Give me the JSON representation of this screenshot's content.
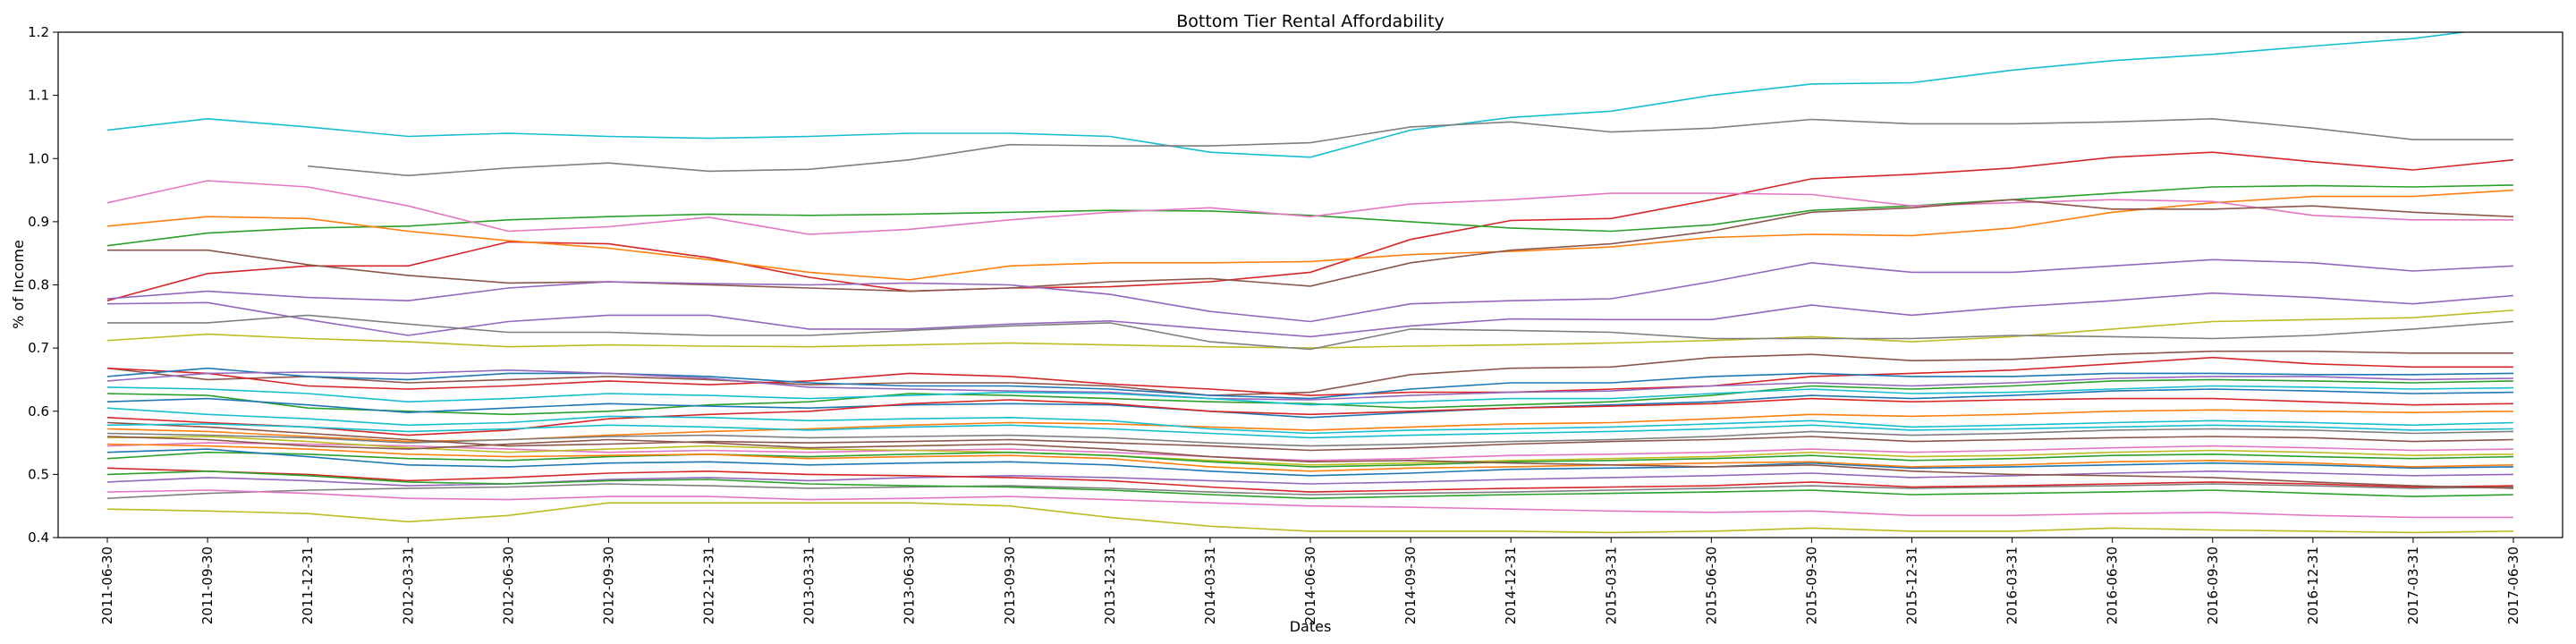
{
  "chart_data": {
    "type": "line",
    "title": "Bottom Tier Rental Affordability",
    "xlabel": "Dates",
    "ylabel": "% of Income",
    "ylim": [
      0.4,
      1.2
    ],
    "yticks": [
      "0.4",
      "0.5",
      "0.6",
      "0.7",
      "0.8",
      "0.9",
      "1.0",
      "1.1",
      "1.2"
    ],
    "grid": false,
    "legend": "none",
    "x": [
      "2011-06-30",
      "2011-09-30",
      "2011-12-31",
      "2012-03-31",
      "2012-06-30",
      "2012-09-30",
      "2012-12-31",
      "2013-03-31",
      "2013-06-30",
      "2013-09-30",
      "2013-12-31",
      "2014-03-31",
      "2014-06-30",
      "2014-09-30",
      "2014-12-31",
      "2015-03-31",
      "2015-06-30",
      "2015-09-30",
      "2015-12-31",
      "2016-03-31",
      "2016-06-30",
      "2016-09-30",
      "2016-12-31",
      "2017-03-31",
      "2017-06-30"
    ],
    "series": [
      {
        "color": "#17becf",
        "values": [
          1.045,
          1.063,
          1.05,
          1.035,
          1.04,
          1.035,
          1.032,
          1.035,
          1.04,
          1.04,
          1.035,
          1.01,
          1.002,
          1.045,
          1.065,
          1.075,
          1.1,
          1.118,
          1.12,
          1.14,
          1.155,
          1.165,
          1.178,
          1.19,
          1.21
        ]
      },
      {
        "color": "#7f7f7f",
        "values": [
          null,
          null,
          0.988,
          0.973,
          0.985,
          0.993,
          0.98,
          0.983,
          0.998,
          1.022,
          1.02,
          1.02,
          1.025,
          1.05,
          1.058,
          1.042,
          1.048,
          1.062,
          1.055,
          1.055,
          1.058,
          1.063,
          1.048,
          1.03,
          1.03
        ]
      },
      {
        "color": "#d62728",
        "values": [
          0.775,
          0.818,
          0.83,
          0.83,
          0.868,
          0.865,
          0.843,
          0.812,
          0.79,
          0.795,
          0.797,
          0.805,
          0.82,
          0.872,
          0.902,
          0.905,
          0.935,
          0.968,
          0.975,
          0.985,
          1.002,
          1.01,
          0.995,
          0.982,
          0.998
        ]
      },
      {
        "color": "#2ca02c",
        "values": [
          0.862,
          0.882,
          0.89,
          0.893,
          0.903,
          0.908,
          0.912,
          0.91,
          0.912,
          0.915,
          0.918,
          0.917,
          0.91,
          0.9,
          0.89,
          0.885,
          0.895,
          0.918,
          0.925,
          0.935,
          0.945,
          0.955,
          0.957,
          0.955,
          0.958
        ]
      },
      {
        "color": "#ff7f0e",
        "values": [
          0.893,
          0.908,
          0.905,
          0.885,
          0.87,
          0.858,
          0.84,
          0.82,
          0.808,
          0.83,
          0.835,
          0.835,
          0.837,
          0.848,
          0.853,
          0.86,
          0.875,
          0.88,
          0.878,
          0.89,
          0.915,
          0.93,
          0.94,
          0.94,
          0.95
        ]
      },
      {
        "color": "#e377c2",
        "values": [
          0.93,
          0.965,
          0.955,
          0.925,
          0.885,
          0.892,
          0.907,
          0.88,
          0.888,
          0.903,
          0.915,
          0.922,
          0.908,
          0.928,
          0.935,
          0.945,
          0.945,
          0.943,
          0.925,
          0.93,
          0.935,
          0.932,
          0.91,
          0.903,
          0.903
        ]
      },
      {
        "color": "#8c564b",
        "values": [
          0.855,
          0.855,
          0.832,
          0.815,
          0.803,
          0.805,
          0.8,
          0.795,
          0.79,
          0.795,
          0.805,
          0.81,
          0.798,
          0.835,
          0.855,
          0.865,
          0.885,
          0.915,
          0.922,
          0.935,
          0.92,
          0.92,
          0.925,
          0.915,
          0.908
        ]
      },
      {
        "color": "#9467bd",
        "values": [
          0.778,
          0.79,
          0.78,
          0.775,
          0.795,
          0.805,
          0.802,
          0.8,
          0.803,
          0.8,
          0.785,
          0.758,
          0.742,
          0.77,
          0.775,
          0.778,
          0.805,
          0.835,
          0.82,
          0.82,
          0.83,
          0.84,
          0.835,
          0.822,
          0.83
        ]
      },
      {
        "color": "#9467bd",
        "values": [
          0.77,
          0.772,
          0.745,
          0.72,
          0.742,
          0.752,
          0.752,
          0.73,
          0.73,
          0.738,
          0.743,
          0.73,
          0.718,
          0.735,
          0.746,
          0.745,
          0.745,
          0.768,
          0.752,
          0.765,
          0.775,
          0.787,
          0.78,
          0.77,
          0.783
        ]
      },
      {
        "color": "#bcbd22",
        "values": [
          0.712,
          0.722,
          0.715,
          0.71,
          0.702,
          0.705,
          0.703,
          0.702,
          0.705,
          0.708,
          0.705,
          0.702,
          0.7,
          0.703,
          0.705,
          0.708,
          0.712,
          0.718,
          0.71,
          0.718,
          0.73,
          0.742,
          0.745,
          0.748,
          0.76
        ]
      },
      {
        "color": "#7f7f7f",
        "values": [
          0.74,
          0.74,
          0.752,
          0.738,
          0.725,
          0.725,
          0.72,
          0.72,
          0.728,
          0.735,
          0.74,
          0.71,
          0.698,
          0.73,
          0.728,
          0.725,
          0.715,
          0.715,
          0.715,
          0.72,
          0.718,
          0.715,
          0.72,
          0.73,
          0.742
        ]
      },
      {
        "color": "#8c564b",
        "values": [
          0.668,
          0.65,
          0.655,
          0.645,
          0.65,
          0.655,
          0.65,
          0.642,
          0.645,
          0.645,
          0.64,
          0.625,
          0.63,
          0.658,
          0.668,
          0.67,
          0.685,
          0.69,
          0.68,
          0.682,
          0.69,
          0.695,
          0.695,
          0.692,
          0.692
        ]
      },
      {
        "color": "#d62728",
        "values": [
          0.668,
          0.66,
          0.64,
          0.635,
          0.64,
          0.648,
          0.642,
          0.648,
          0.66,
          0.655,
          0.643,
          0.635,
          0.625,
          0.63,
          0.63,
          0.635,
          0.64,
          0.655,
          0.66,
          0.665,
          0.675,
          0.685,
          0.675,
          0.67,
          0.67
        ]
      },
      {
        "color": "#1f77b4",
        "values": [
          0.655,
          0.668,
          0.655,
          0.65,
          0.66,
          0.66,
          0.655,
          0.645,
          0.64,
          0.64,
          0.635,
          0.625,
          0.62,
          0.635,
          0.645,
          0.645,
          0.655,
          0.66,
          0.655,
          0.655,
          0.66,
          0.66,
          0.658,
          0.658,
          0.66
        ]
      },
      {
        "color": "#9467bd",
        "values": [
          0.648,
          0.66,
          0.662,
          0.66,
          0.665,
          0.66,
          0.652,
          0.638,
          0.635,
          0.632,
          0.63,
          0.62,
          0.618,
          0.625,
          0.63,
          0.632,
          0.64,
          0.645,
          0.64,
          0.645,
          0.652,
          0.655,
          0.655,
          0.65,
          0.652
        ]
      },
      {
        "color": "#2ca02c",
        "values": [
          0.628,
          0.625,
          0.605,
          0.6,
          0.595,
          0.6,
          0.61,
          0.615,
          0.628,
          0.625,
          0.62,
          0.615,
          0.612,
          0.605,
          0.61,
          0.615,
          0.625,
          0.64,
          0.635,
          0.64,
          0.648,
          0.65,
          0.648,
          0.645,
          0.648
        ]
      },
      {
        "color": "#17becf",
        "values": [
          0.638,
          0.635,
          0.628,
          0.615,
          0.62,
          0.628,
          0.625,
          0.62,
          0.625,
          0.63,
          0.628,
          0.62,
          0.61,
          0.615,
          0.62,
          0.62,
          0.628,
          0.635,
          0.628,
          0.63,
          0.635,
          0.64,
          0.638,
          0.635,
          0.637
        ]
      },
      {
        "color": "#1f77b4",
        "values": [
          0.615,
          0.62,
          0.61,
          0.598,
          0.605,
          0.612,
          0.608,
          0.605,
          0.61,
          0.612,
          0.61,
          0.6,
          0.59,
          0.598,
          0.605,
          0.61,
          0.615,
          0.625,
          0.62,
          0.625,
          0.632,
          0.635,
          0.632,
          0.628,
          0.63
        ]
      },
      {
        "color": "#d62728",
        "values": [
          0.59,
          0.582,
          0.575,
          0.562,
          0.57,
          0.588,
          0.595,
          0.6,
          0.612,
          0.618,
          0.612,
          0.6,
          0.595,
          0.6,
          0.605,
          0.608,
          0.612,
          0.62,
          0.615,
          0.618,
          0.62,
          0.62,
          0.615,
          0.61,
          0.612
        ]
      },
      {
        "color": "#ff7f0e",
        "values": [
          0.572,
          0.568,
          0.56,
          0.552,
          0.555,
          0.562,
          0.568,
          0.572,
          0.578,
          0.582,
          0.58,
          0.575,
          0.57,
          0.575,
          0.58,
          0.582,
          0.588,
          0.595,
          0.592,
          0.595,
          0.6,
          0.602,
          0.6,
          0.598,
          0.6
        ]
      },
      {
        "color": "#17becf",
        "values": [
          0.605,
          0.595,
          0.588,
          0.578,
          0.582,
          0.592,
          0.59,
          0.585,
          0.588,
          0.59,
          0.585,
          0.572,
          0.565,
          0.57,
          0.572,
          0.575,
          0.58,
          0.585,
          0.575,
          0.578,
          0.582,
          0.585,
          0.582,
          0.578,
          0.582
        ]
      },
      {
        "color": "#7f7f7f",
        "values": [
          0.565,
          0.562,
          0.558,
          0.55,
          0.555,
          0.56,
          0.562,
          0.558,
          0.56,
          0.562,
          0.558,
          0.55,
          0.545,
          0.548,
          0.552,
          0.555,
          0.56,
          0.568,
          0.562,
          0.565,
          0.57,
          0.572,
          0.57,
          0.565,
          0.568
        ]
      },
      {
        "color": "#8c564b",
        "values": [
          0.582,
          0.575,
          0.565,
          0.555,
          0.545,
          0.548,
          0.552,
          0.55,
          0.552,
          0.555,
          0.55,
          0.545,
          0.538,
          0.542,
          0.548,
          0.552,
          0.555,
          0.56,
          0.552,
          0.555,
          0.558,
          0.56,
          0.558,
          0.552,
          0.555
        ]
      },
      {
        "color": "#e377c2",
        "values": [
          0.545,
          0.55,
          0.548,
          0.545,
          0.54,
          0.535,
          0.538,
          0.535,
          0.538,
          0.54,
          0.535,
          0.528,
          0.522,
          0.525,
          0.53,
          0.532,
          0.535,
          0.54,
          0.535,
          0.538,
          0.542,
          0.545,
          0.542,
          0.538,
          0.54
        ]
      },
      {
        "color": "#bcbd22",
        "values": [
          0.558,
          0.56,
          0.552,
          0.542,
          0.535,
          0.54,
          0.545,
          0.54,
          0.538,
          0.535,
          0.53,
          0.522,
          0.515,
          0.518,
          0.522,
          0.525,
          0.528,
          0.535,
          0.528,
          0.53,
          0.535,
          0.538,
          0.535,
          0.53,
          0.532
        ]
      },
      {
        "color": "#2ca02c",
        "values": [
          0.525,
          0.535,
          0.532,
          0.525,
          0.522,
          0.528,
          0.532,
          0.528,
          0.532,
          0.535,
          0.53,
          0.52,
          0.512,
          0.515,
          0.52,
          0.522,
          0.525,
          0.53,
          0.522,
          0.525,
          0.53,
          0.532,
          0.528,
          0.525,
          0.528
        ]
      },
      {
        "color": "#1f77b4",
        "values": [
          0.535,
          0.54,
          0.528,
          0.515,
          0.512,
          0.518,
          0.52,
          0.515,
          0.518,
          0.52,
          0.515,
          0.505,
          0.498,
          0.502,
          0.508,
          0.51,
          0.512,
          0.518,
          0.51,
          0.512,
          0.515,
          0.518,
          0.515,
          0.51,
          0.512
        ]
      },
      {
        "color": "#ff7f0e",
        "values": [
          0.548,
          0.545,
          0.54,
          0.532,
          0.528,
          0.53,
          0.532,
          0.525,
          0.528,
          0.53,
          0.525,
          0.512,
          0.505,
          0.51,
          0.512,
          0.515,
          0.518,
          0.52,
          0.512,
          0.515,
          0.52,
          0.522,
          0.518,
          0.512,
          0.515
        ]
      },
      {
        "color": "#9467bd",
        "values": [
          0.488,
          0.495,
          0.49,
          0.482,
          0.485,
          0.492,
          0.495,
          0.49,
          0.495,
          0.498,
          0.495,
          0.49,
          0.485,
          0.488,
          0.492,
          0.495,
          0.498,
          0.502,
          0.495,
          0.498,
          0.502,
          0.505,
          0.502,
          0.498,
          0.5
        ]
      },
      {
        "color": "#7f7f7f",
        "values": [
          0.462,
          0.47,
          0.475,
          0.478,
          0.48,
          0.485,
          0.482,
          0.478,
          0.48,
          0.482,
          0.478,
          0.472,
          0.468,
          0.47,
          0.472,
          0.475,
          0.478,
          0.482,
          0.478,
          0.48,
          0.482,
          0.485,
          0.482,
          0.478,
          0.48
        ]
      },
      {
        "color": "#d62728",
        "values": [
          0.51,
          0.505,
          0.5,
          0.49,
          0.495,
          0.502,
          0.505,
          0.5,
          0.498,
          0.495,
          0.49,
          0.48,
          0.472,
          0.475,
          0.478,
          0.48,
          0.482,
          0.488,
          0.48,
          0.482,
          0.485,
          0.488,
          0.485,
          0.48,
          0.482
        ]
      },
      {
        "color": "#2ca02c",
        "values": [
          0.5,
          0.505,
          0.498,
          0.488,
          0.485,
          0.49,
          0.492,
          0.485,
          0.482,
          0.48,
          0.475,
          0.468,
          0.462,
          0.465,
          0.468,
          0.47,
          0.472,
          0.475,
          0.468,
          0.47,
          0.472,
          0.475,
          0.47,
          0.465,
          0.468
        ]
      },
      {
        "color": "#e377c2",
        "values": [
          0.472,
          0.475,
          0.47,
          0.462,
          0.46,
          0.465,
          0.465,
          0.46,
          0.462,
          0.465,
          0.46,
          0.455,
          0.45,
          0.448,
          0.445,
          0.442,
          0.44,
          0.442,
          0.435,
          0.435,
          0.438,
          0.44,
          0.435,
          0.432,
          0.432
        ]
      },
      {
        "color": "#bcbd22",
        "values": [
          0.445,
          0.442,
          0.438,
          0.425,
          0.435,
          0.455,
          0.455,
          0.455,
          0.455,
          0.45,
          0.432,
          0.418,
          0.41,
          0.41,
          0.41,
          0.408,
          0.41,
          0.415,
          0.41,
          0.41,
          0.415,
          0.412,
          0.41,
          0.408,
          0.41
        ]
      },
      {
        "color": "#8c564b",
        "values": [
          0.56,
          0.555,
          0.545,
          0.54,
          0.548,
          0.555,
          0.55,
          0.542,
          0.545,
          0.548,
          0.54,
          0.528,
          0.52,
          0.522,
          0.518,
          0.515,
          0.512,
          0.515,
          0.505,
          0.5,
          0.498,
          0.495,
          0.488,
          0.482,
          0.478
        ]
      },
      {
        "color": "#17becf",
        "values": [
          0.578,
          0.58,
          0.575,
          0.568,
          0.572,
          0.578,
          0.575,
          0.57,
          0.575,
          0.578,
          0.572,
          0.565,
          0.558,
          0.562,
          0.565,
          0.568,
          0.572,
          0.578,
          0.57,
          0.572,
          0.575,
          0.578,
          0.575,
          0.57,
          0.572
        ]
      }
    ]
  }
}
